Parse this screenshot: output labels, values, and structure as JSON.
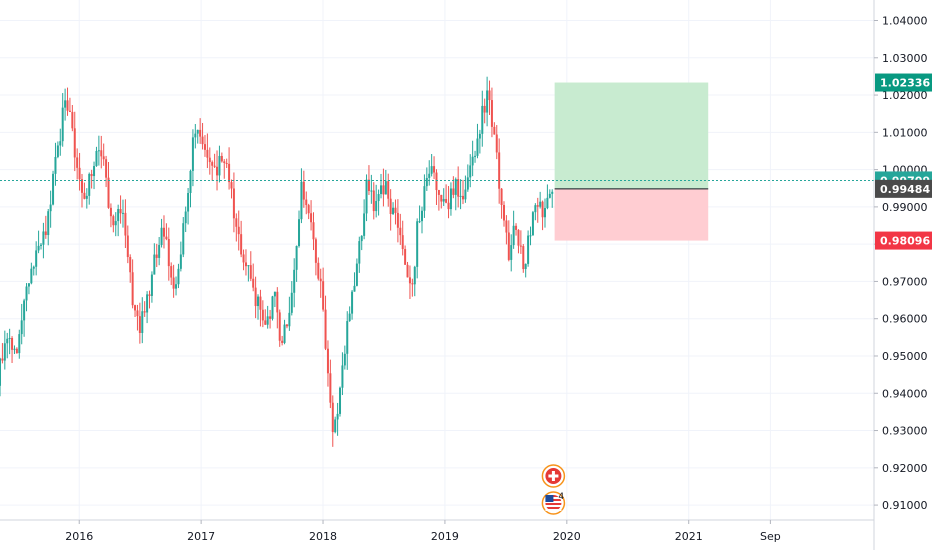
{
  "chart_data": {
    "type": "candlestick",
    "title": "",
    "xlabel": "",
    "ylabel": "",
    "x_range": [
      2015.35,
      2022.52
    ],
    "ylim": [
      0.906,
      1.0455
    ],
    "grid": true,
    "x_ticks": [
      {
        "label": "2016",
        "x": 2016.0
      },
      {
        "label": "2017",
        "x": 2017.0
      },
      {
        "label": "2018",
        "x": 2018.0
      },
      {
        "label": "2019",
        "x": 2019.0
      },
      {
        "label": "2020",
        "x": 2020.0
      },
      {
        "label": "2021",
        "x": 2021.0
      },
      {
        "label": "Sep",
        "x": 2021.67
      }
    ],
    "y_ticks": [
      {
        "label": "1.04000",
        "value": 1.04
      },
      {
        "label": "1.03000",
        "value": 1.03
      },
      {
        "label": "1.02000",
        "value": 1.02
      },
      {
        "label": "1.01000",
        "value": 1.01
      },
      {
        "label": "1.00000",
        "value": 1.0
      },
      {
        "label": "0.99000",
        "value": 0.99
      },
      {
        "label": "0.98000",
        "value": 0.98
      },
      {
        "label": "0.97000",
        "value": 0.97
      },
      {
        "label": "0.96000",
        "value": 0.96
      },
      {
        "label": "0.95000",
        "value": 0.95
      },
      {
        "label": "0.94000",
        "value": 0.94
      },
      {
        "label": "0.93000",
        "value": 0.93
      },
      {
        "label": "0.92000",
        "value": 0.92
      },
      {
        "label": "0.91000",
        "value": 0.91
      }
    ],
    "price_path": [
      [
        2015.35,
        0.942
      ],
      [
        2015.42,
        0.958
      ],
      [
        2015.5,
        0.951
      ],
      [
        2015.58,
        0.968
      ],
      [
        2015.66,
        0.978
      ],
      [
        2015.74,
        0.984
      ],
      [
        2015.82,
        1.0
      ],
      [
        2015.9,
        1.018
      ],
      [
        2015.95,
        1.012
      ],
      [
        2016.0,
        0.998
      ],
      [
        2016.06,
        0.991
      ],
      [
        2016.12,
        0.999
      ],
      [
        2016.18,
        1.008
      ],
      [
        2016.25,
        0.994
      ],
      [
        2016.31,
        0.984
      ],
      [
        2016.38,
        0.99
      ],
      [
        2016.44,
        0.969
      ],
      [
        2016.5,
        0.958
      ],
      [
        2016.56,
        0.962
      ],
      [
        2016.63,
        0.975
      ],
      [
        2016.69,
        0.983
      ],
      [
        2016.75,
        0.977
      ],
      [
        2016.81,
        0.967
      ],
      [
        2016.87,
        0.982
      ],
      [
        2016.93,
        0.999
      ],
      [
        2016.98,
        1.014
      ],
      [
        2017.02,
        1.009
      ],
      [
        2017.08,
        1.002
      ],
      [
        2017.14,
        0.998
      ],
      [
        2017.2,
        1.005
      ],
      [
        2017.26,
        0.994
      ],
      [
        2017.32,
        0.982
      ],
      [
        2017.38,
        0.976
      ],
      [
        2017.44,
        0.967
      ],
      [
        2017.5,
        0.965
      ],
      [
        2017.56,
        0.957
      ],
      [
        2017.62,
        0.966
      ],
      [
        2017.68,
        0.953
      ],
      [
        2017.74,
        0.961
      ],
      [
        2017.8,
        0.981
      ],
      [
        2017.84,
        0.996
      ],
      [
        2017.9,
        0.99
      ],
      [
        2017.96,
        0.978
      ],
      [
        2018.02,
        0.965
      ],
      [
        2018.06,
        0.944
      ],
      [
        2018.1,
        0.929
      ],
      [
        2018.13,
        0.934
      ],
      [
        2018.17,
        0.946
      ],
      [
        2018.22,
        0.958
      ],
      [
        2018.28,
        0.969
      ],
      [
        2018.34,
        0.984
      ],
      [
        2018.38,
        0.996
      ],
      [
        2018.44,
        0.991
      ],
      [
        2018.5,
        0.997
      ],
      [
        2018.56,
        0.992
      ],
      [
        2018.62,
        0.986
      ],
      [
        2018.68,
        0.978
      ],
      [
        2018.72,
        0.969
      ],
      [
        2018.76,
        0.972
      ],
      [
        2018.8,
        0.986
      ],
      [
        2018.86,
        0.996
      ],
      [
        2018.92,
        0.999
      ],
      [
        2018.98,
        0.99
      ],
      [
        2019.04,
        0.989
      ],
      [
        2019.1,
        0.997
      ],
      [
        2019.16,
        0.993
      ],
      [
        2019.22,
        1.0
      ],
      [
        2019.27,
        1.006
      ],
      [
        2019.32,
        1.014
      ],
      [
        2019.36,
        1.019
      ],
      [
        2019.4,
        1.014
      ],
      [
        2019.45,
        1.002
      ],
      [
        2019.5,
        0.986
      ],
      [
        2019.55,
        0.975
      ],
      [
        2019.59,
        0.985
      ],
      [
        2019.64,
        0.979
      ],
      [
        2019.67,
        0.972
      ],
      [
        2019.72,
        0.985
      ],
      [
        2019.77,
        0.993
      ],
      [
        2019.82,
        0.987
      ],
      [
        2019.86,
        0.994
      ],
      [
        2019.89,
        0.99
      ],
      [
        2019.9,
        0.99484
      ]
    ],
    "position": {
      "entry": 0.99484,
      "take_profit": 1.02336,
      "stop_loss": 0.98096,
      "x_start": 2019.9,
      "x_end": 2021.16
    },
    "current_price": 0.99709,
    "badges": [
      {
        "label": "1.02336",
        "value": 1.02336,
        "color": "#089981"
      },
      {
        "label": "0.99709",
        "value": 0.99709,
        "color": "#26a69a"
      },
      {
        "label": "0.99484",
        "value": 0.99484,
        "color": "#4a4a4a"
      },
      {
        "label": "0.98096",
        "value": 0.98096,
        "color": "#f23645"
      }
    ],
    "event_markers": [
      {
        "name": "ch-flag-icon",
        "x": 2019.89,
        "slot": 0,
        "count": ""
      },
      {
        "name": "us-flag-icon",
        "x": 2019.89,
        "slot": 1,
        "count": "4"
      }
    ],
    "colors": {
      "up": "#26a69a",
      "down": "#ef5350",
      "profit_zone": "#c8ebd0",
      "loss_zone": "#ffcdd2",
      "grid": "#f0f3fa",
      "price_line": "#26a69a"
    }
  }
}
